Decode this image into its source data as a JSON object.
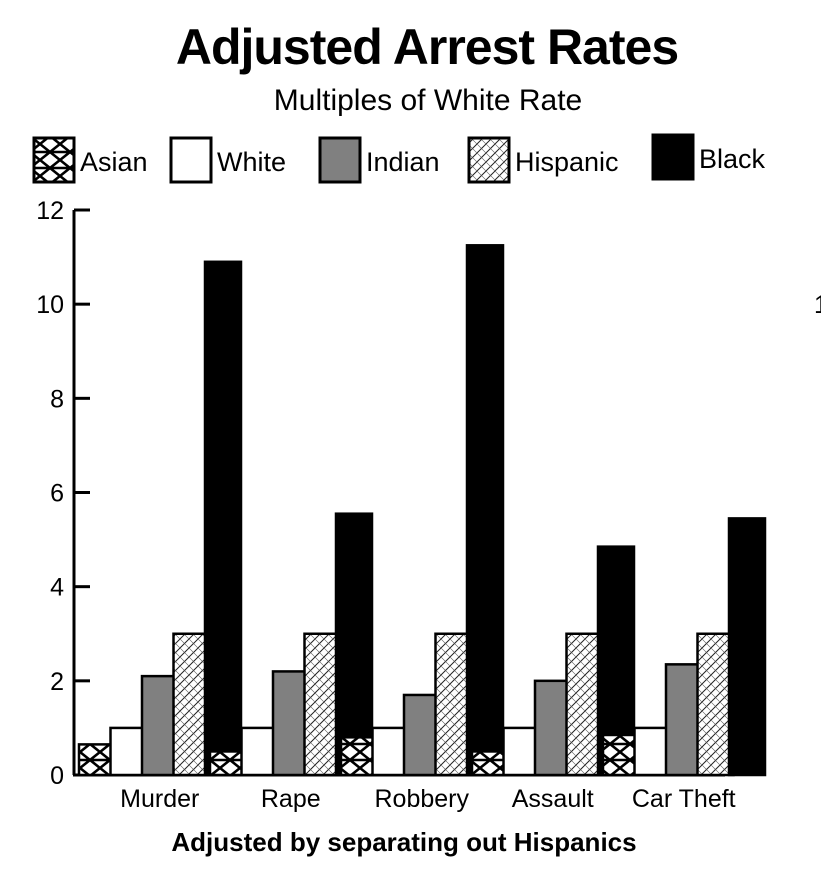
{
  "chart_data": {
    "type": "bar",
    "title": "Adjusted Arrest Rates",
    "subtitle": "Multiples of White Rate",
    "xlabel": "Adjusted by separating out Hispanics",
    "ylabel": "",
    "ylim": [
      0,
      12
    ],
    "yticks": [
      "0",
      "2",
      "4",
      "6",
      "8",
      "10",
      "12"
    ],
    "grid": false,
    "legend_position": "top",
    "categories": [
      "Murder",
      "Rape",
      "Robbery",
      "Assault",
      "Car Theft"
    ],
    "series": [
      {
        "name": "Asian",
        "values": [
          0.65,
          0.5,
          0.8,
          0.5,
          0.85
        ],
        "color": "#ffffff",
        "pattern": "cross-hatch"
      },
      {
        "name": "White",
        "values": [
          1.0,
          1.0,
          1.0,
          1.0,
          1.0
        ],
        "color": "#ffffff",
        "pattern": "solid"
      },
      {
        "name": "Indian",
        "values": [
          2.1,
          2.2,
          1.7,
          2.0,
          2.35
        ],
        "color": "#808080",
        "pattern": "solid"
      },
      {
        "name": "Hispanic",
        "values": [
          3.0,
          3.0,
          3.0,
          3.0,
          3.0
        ],
        "color": "#ffffff",
        "pattern": "fine-hatch"
      },
      {
        "name": "Black",
        "values": [
          10.9,
          5.55,
          11.25,
          4.85,
          5.45
        ],
        "color": "#000000",
        "pattern": "solid"
      }
    ],
    "stray_text": "1"
  }
}
